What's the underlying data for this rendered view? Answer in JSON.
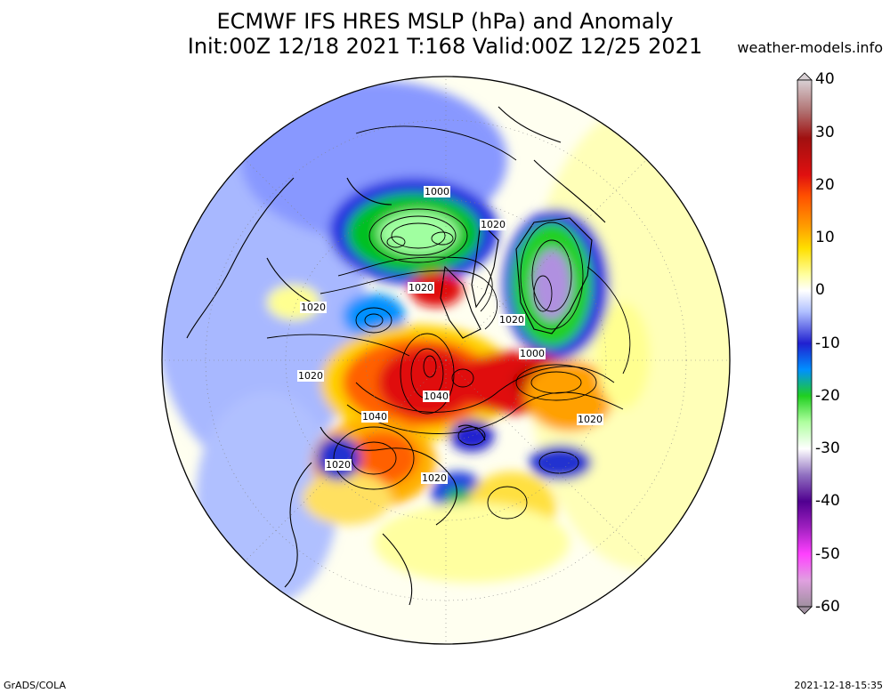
{
  "header": {
    "title_line1": "ECMWF IFS HRES MSLP (hPa) and Anomaly",
    "title_line2": "Init:00Z 12/18 2021 T:168 Valid:00Z 12/25 2021",
    "credit": "weather-models.info"
  },
  "footer": {
    "left": "GrADS/COLA",
    "right": "2021-12-18-15:35"
  },
  "colorbar": {
    "ticks": [
      "40",
      "30",
      "20",
      "10",
      "0",
      "-10",
      "-20",
      "-30",
      "-40",
      "-50",
      "-60"
    ],
    "colors": {
      "p40": "#d0c4c8",
      "p35": "#a05050",
      "p30": "#c00000",
      "p25": "#e01010",
      "p20": "#ff5000",
      "p15": "#ffa000",
      "p10": "#ffe000",
      "p5": "#ffffa0",
      "zero": "#ffffff",
      "m5": "#b0c0ff",
      "m10": "#3030e0",
      "m15": "#0090ff",
      "m20": "#20d020",
      "m25": "#a0ff90",
      "m30": "#ffffff",
      "m35": "#9070c0",
      "m40": "#500090",
      "m50": "#ff40ff",
      "m60": "#a090a0"
    }
  },
  "map": {
    "projection": "north-polar-stereographic",
    "contour_labels": [
      "1000",
      "1020",
      "1020",
      "1020",
      "1020",
      "1000",
      "1040",
      "1040",
      "1020",
      "1020",
      "1020",
      "1020"
    ]
  }
}
